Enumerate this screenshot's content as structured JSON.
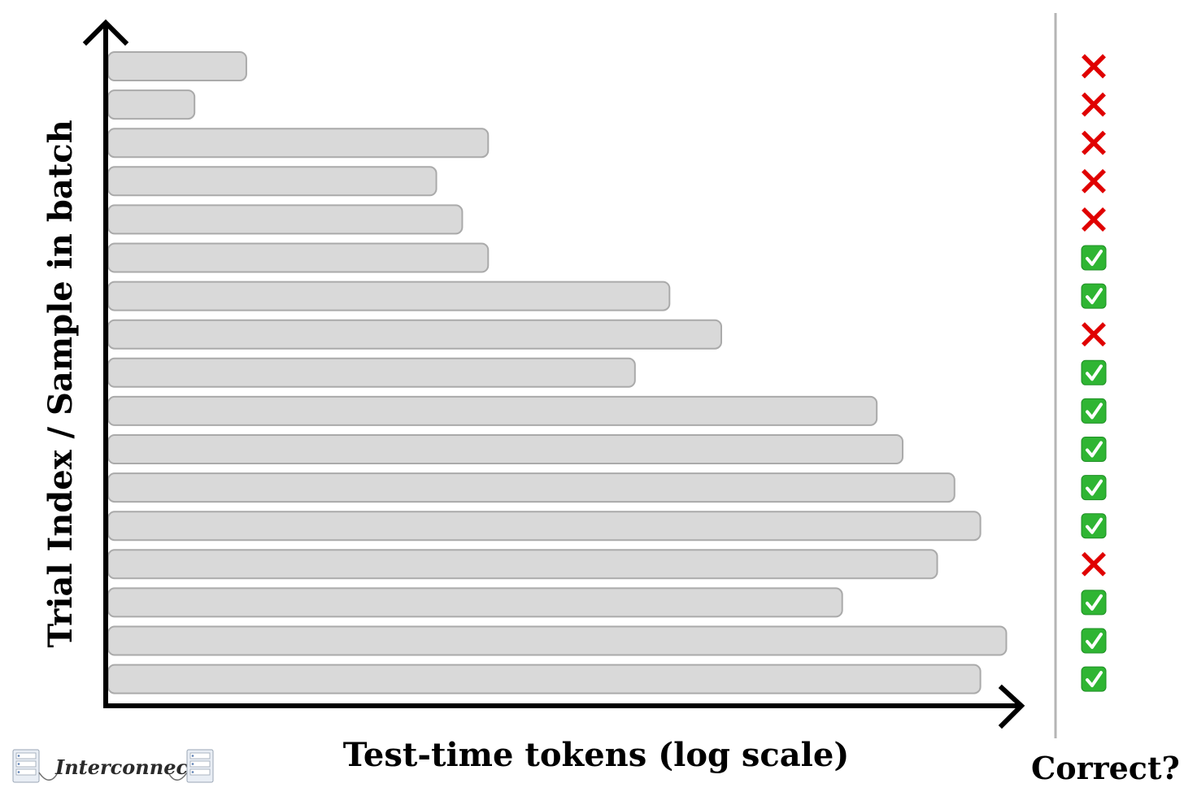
{
  "chart_data": {
    "type": "bar",
    "orientation": "horizontal",
    "xlabel": "Test-time tokens (log scale)",
    "ylabel": "Trial Index / Sample in batch",
    "status_label": "Correct?",
    "x_scale": "log",
    "grid": false,
    "legend": "none",
    "values": [
      0.16,
      0.1,
      0.44,
      0.38,
      0.41,
      0.44,
      0.65,
      0.71,
      0.61,
      0.89,
      0.92,
      0.98,
      1.01,
      0.96,
      0.85,
      1.04,
      1.01
    ],
    "correct": [
      false,
      false,
      false,
      false,
      false,
      true,
      true,
      false,
      true,
      true,
      true,
      true,
      true,
      false,
      true,
      true,
      true
    ],
    "colors": {
      "bar": "#d9d9d9",
      "bar_border": "#aaaaaa",
      "wrong": "#e00000",
      "right": "#2fb533"
    },
    "icons": {
      "wrong": "red-x-icon",
      "right": "green-check-icon"
    }
  },
  "branding": {
    "logo_text": "Interconnects"
  }
}
